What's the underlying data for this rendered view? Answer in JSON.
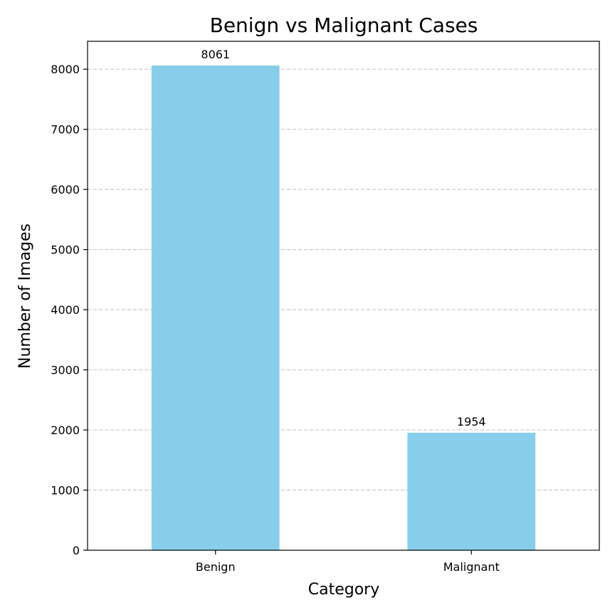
{
  "chart_data": {
    "type": "bar",
    "title": "Benign vs Malignant Cases",
    "xlabel": "Category",
    "ylabel": "Number of Images",
    "categories": [
      "Benign",
      "Malignant"
    ],
    "values": [
      8061,
      1954
    ],
    "data_labels": [
      "8061",
      "1954"
    ],
    "ylim": [
      0,
      8464
    ],
    "yticks": [
      0,
      1000,
      2000,
      3000,
      4000,
      5000,
      6000,
      7000,
      8000
    ],
    "ytick_labels": [
      "0",
      "1000",
      "2000",
      "3000",
      "4000",
      "5000",
      "6000",
      "7000",
      "8000"
    ],
    "grid": "y-dashed",
    "legend": "none",
    "colors": {
      "bar": "#87ceeb",
      "grid": "#c8c8c8",
      "axis": "#000000"
    }
  }
}
